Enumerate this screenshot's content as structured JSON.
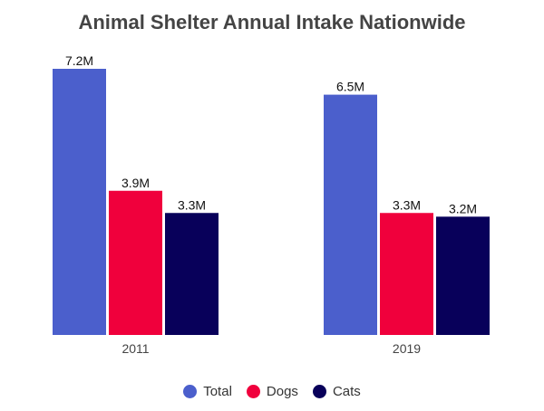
{
  "chart_data": {
    "type": "bar",
    "title": "Animal Shelter Annual Intake Nationwide",
    "categories": [
      "2011",
      "2019"
    ],
    "series": [
      {
        "name": "Total",
        "values": [
          7.2,
          6.5
        ],
        "labels": [
          "7.2M",
          "6.5M"
        ],
        "color": "#4b5fcc"
      },
      {
        "name": "Dogs",
        "values": [
          3.9,
          3.3
        ],
        "labels": [
          "3.9M",
          "3.3M"
        ],
        "color": "#f0003c"
      },
      {
        "name": "Cats",
        "values": [
          3.3,
          3.2
        ],
        "labels": [
          "3.3M",
          "3.2M"
        ],
        "color": "#08005a"
      }
    ],
    "xlabel": "",
    "ylabel": "",
    "ylim": [
      0,
      7.2
    ],
    "grid": false,
    "legend_position": "bottom",
    "unit": "M"
  }
}
